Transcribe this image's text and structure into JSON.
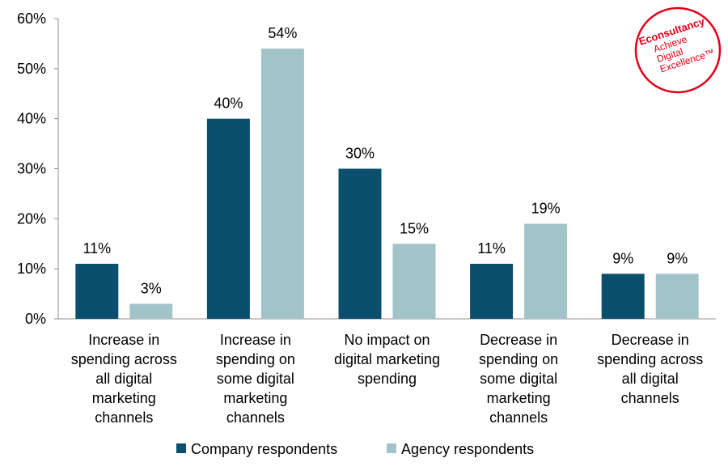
{
  "chart_data": {
    "type": "bar",
    "title": "",
    "xlabel": "",
    "ylabel": "",
    "ylim": [
      0,
      60
    ],
    "yticks": [
      0,
      10,
      20,
      30,
      40,
      50,
      60
    ],
    "ytick_labels": [
      "0%",
      "10%",
      "20%",
      "30%",
      "40%",
      "50%",
      "60%"
    ],
    "grid": false,
    "legend_position": "bottom",
    "categories": [
      [
        "Increase in",
        "spending across",
        "all digital",
        "marketing",
        "channels"
      ],
      [
        "Increase in",
        "spending on",
        "some digital",
        "marketing",
        "channels"
      ],
      [
        "No impact on",
        "digital marketing",
        "spending"
      ],
      [
        "Decrease in",
        "spending on",
        "some digital",
        "marketing",
        "channels"
      ],
      [
        "Decrease in",
        "spending across",
        "all digital",
        "channels"
      ]
    ],
    "series": [
      {
        "name": "Company respondents",
        "color": "#0b4f6c",
        "values": [
          11,
          40,
          30,
          11,
          9
        ],
        "labels": [
          "11%",
          "40%",
          "30%",
          "11%",
          "9%"
        ]
      },
      {
        "name": "Agency respondents",
        "color": "#a2c4c9",
        "values": [
          3,
          54,
          15,
          19,
          9
        ],
        "labels": [
          "3%",
          "54%",
          "15%",
          "19%",
          "9%"
        ]
      }
    ]
  },
  "logo": {
    "brand": "Econsultancy",
    "tagline": [
      "Achieve",
      "Digital",
      "Excellence™"
    ],
    "color": "#e3001b"
  }
}
